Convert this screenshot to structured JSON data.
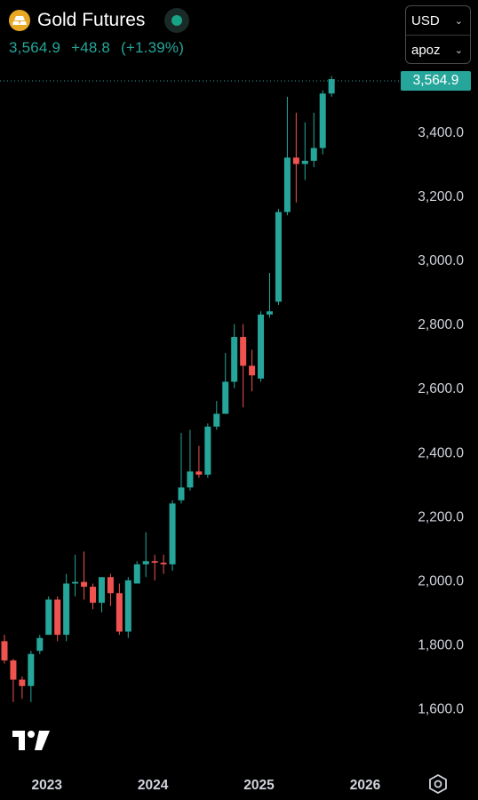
{
  "header": {
    "title": "Gold Futures",
    "price": "3,564.9",
    "change": "+48.8",
    "change_pct": "(+1.39%)",
    "status": "market-open",
    "icon": "gold-bars-icon"
  },
  "selectors": {
    "currency": "USD",
    "unit": "apoz"
  },
  "last_price_tag": "3,564.9",
  "colors": {
    "up": "#26a69a",
    "down": "#ef5350",
    "background": "#000000",
    "text": "#d1d4dc"
  },
  "chart_data": {
    "type": "candlestick",
    "title": "",
    "interval": "monthly",
    "y_ticks": [
      1600,
      1800,
      2000,
      2200,
      2400,
      2600,
      2800,
      3000,
      3200,
      3400
    ],
    "y_tick_labels": [
      "1,600.0",
      "1,800.0",
      "2,000.0",
      "2,200.0",
      "2,400.0",
      "2,600.0",
      "2,800.0",
      "3,000.0",
      "3,200.0",
      "3,400.0"
    ],
    "ylim": [
      1520,
      3630
    ],
    "last_price": 3564.9,
    "x_tick_labels": [
      {
        "label": "2023",
        "index": 5
      },
      {
        "label": "2024",
        "index": 17
      },
      {
        "label": "2025",
        "index": 29
      },
      {
        "label": "2026",
        "index": 41
      }
    ],
    "candles": [
      {
        "o": 1810,
        "h": 1830,
        "l": 1740,
        "c": 1750
      },
      {
        "o": 1750,
        "h": 1755,
        "l": 1620,
        "c": 1690
      },
      {
        "o": 1690,
        "h": 1700,
        "l": 1630,
        "c": 1670
      },
      {
        "o": 1670,
        "h": 1780,
        "l": 1620,
        "c": 1770
      },
      {
        "o": 1780,
        "h": 1830,
        "l": 1770,
        "c": 1820
      },
      {
        "o": 1830,
        "h": 1950,
        "l": 1830,
        "c": 1940
      },
      {
        "o": 1940,
        "h": 1950,
        "l": 1810,
        "c": 1830
      },
      {
        "o": 1830,
        "h": 2020,
        "l": 1810,
        "c": 1990
      },
      {
        "o": 1990,
        "h": 2080,
        "l": 1950,
        "c": 1995
      },
      {
        "o": 1995,
        "h": 2090,
        "l": 1940,
        "c": 1980
      },
      {
        "o": 1980,
        "h": 1990,
        "l": 1910,
        "c": 1930
      },
      {
        "o": 1930,
        "h": 2010,
        "l": 1900,
        "c": 2010
      },
      {
        "o": 2010,
        "h": 2020,
        "l": 1920,
        "c": 1960
      },
      {
        "o": 1960,
        "h": 1990,
        "l": 1830,
        "c": 1840
      },
      {
        "o": 1840,
        "h": 2010,
        "l": 1820,
        "c": 2000
      },
      {
        "o": 1990,
        "h": 2060,
        "l": 1990,
        "c": 2050
      },
      {
        "o": 2050,
        "h": 2150,
        "l": 2010,
        "c": 2060
      },
      {
        "o": 2060,
        "h": 2080,
        "l": 2000,
        "c": 2055
      },
      {
        "o": 2055,
        "h": 2080,
        "l": 2020,
        "c": 2050
      },
      {
        "o": 2050,
        "h": 2250,
        "l": 2030,
        "c": 2240
      },
      {
        "o": 2250,
        "h": 2460,
        "l": 2240,
        "c": 2290
      },
      {
        "o": 2290,
        "h": 2470,
        "l": 2280,
        "c": 2340
      },
      {
        "o": 2340,
        "h": 2420,
        "l": 2320,
        "c": 2330
      },
      {
        "o": 2330,
        "h": 2490,
        "l": 2320,
        "c": 2480
      },
      {
        "o": 2480,
        "h": 2560,
        "l": 2470,
        "c": 2520
      },
      {
        "o": 2520,
        "h": 2710,
        "l": 2520,
        "c": 2620
      },
      {
        "o": 2620,
        "h": 2800,
        "l": 2600,
        "c": 2760
      },
      {
        "o": 2760,
        "h": 2800,
        "l": 2540,
        "c": 2670
      },
      {
        "o": 2670,
        "h": 2720,
        "l": 2590,
        "c": 2640
      },
      {
        "o": 2630,
        "h": 2840,
        "l": 2620,
        "c": 2830
      },
      {
        "o": 2830,
        "h": 2960,
        "l": 2820,
        "c": 2840
      },
      {
        "o": 2870,
        "h": 3160,
        "l": 2860,
        "c": 3150
      },
      {
        "o": 3150,
        "h": 3510,
        "l": 3140,
        "c": 3320
      },
      {
        "o": 3320,
        "h": 3460,
        "l": 3180,
        "c": 3300
      },
      {
        "o": 3300,
        "h": 3430,
        "l": 3250,
        "c": 3310
      },
      {
        "o": 3310,
        "h": 3460,
        "l": 3290,
        "c": 3350
      },
      {
        "o": 3350,
        "h": 3530,
        "l": 3330,
        "c": 3520
      },
      {
        "o": 3520,
        "h": 3575,
        "l": 3510,
        "c": 3565
      }
    ]
  }
}
